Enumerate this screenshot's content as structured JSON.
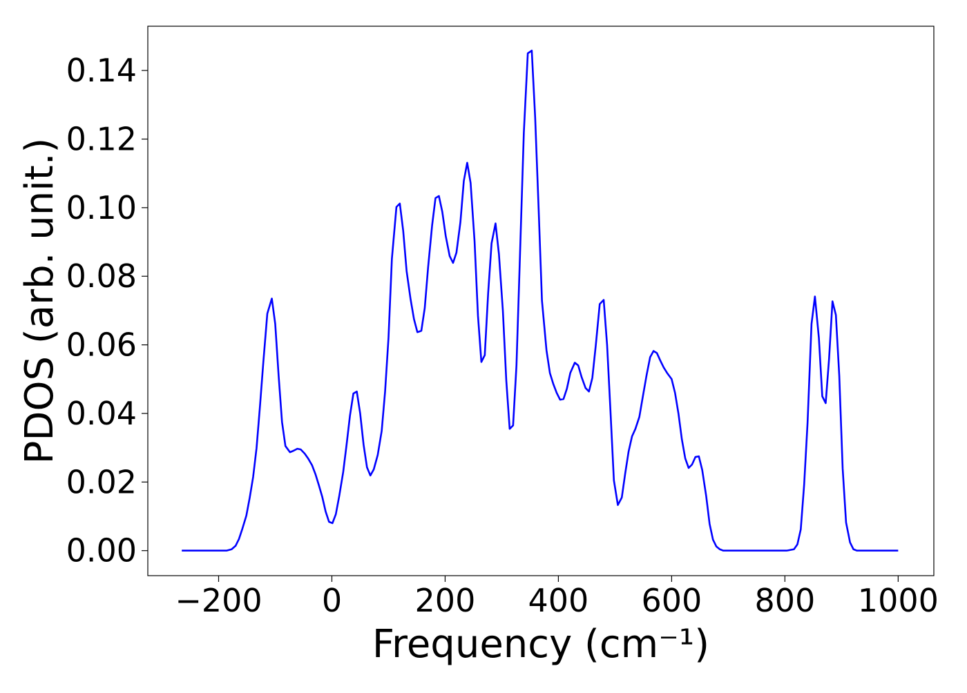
{
  "chart_data": {
    "type": "line",
    "xlabel": "Frequency (cm⁻¹)",
    "ylabel": "PDOS (arb. unit.)",
    "xlim": [
      -325,
      1063
    ],
    "ylim": [
      -0.0073,
      0.1529
    ],
    "xticks": [
      {
        "value": -200,
        "label": "−200"
      },
      0,
      200,
      400,
      600,
      800,
      1000
    ],
    "yticks": [
      {
        "value": 0,
        "label": "0.00"
      },
      {
        "value": 0.02,
        "label": "0.02"
      },
      {
        "value": 0.04,
        "label": "0.04"
      },
      {
        "value": 0.06,
        "label": "0.06"
      },
      {
        "value": 0.08,
        "label": "0.08"
      },
      {
        "value": 0.1,
        "label": "0.10"
      },
      {
        "value": 0.12,
        "label": "0.12"
      },
      {
        "value": 0.14,
        "label": "0.14"
      }
    ],
    "grid": false,
    "series": [
      {
        "color": "#0000ff",
        "x": [
          -265,
          -186,
          -177,
          -170,
          -164,
          -158,
          -151,
          -145,
          -139,
          -133,
          -127,
          -121,
          -114,
          -106,
          -100,
          -94,
          -88,
          -82,
          -74,
          -68,
          -61,
          -55,
          -48,
          -42,
          -35,
          -29,
          -23,
          -17,
          -11,
          -5,
          1,
          7,
          13,
          20,
          26,
          32,
          38,
          44,
          50,
          56,
          62,
          68,
          74,
          81,
          88,
          94,
          100,
          106,
          114,
          120,
          126,
          132,
          139,
          145,
          151,
          158,
          164,
          170,
          177,
          183,
          189,
          195,
          201,
          208,
          214,
          220,
          227,
          233,
          239,
          245,
          252,
          258,
          264,
          270,
          276,
          282,
          289,
          295,
          302,
          308,
          314,
          320,
          326,
          332,
          339,
          346,
          353,
          359,
          365,
          371,
          379,
          385,
          391,
          397,
          403,
          409,
          415,
          421,
          429,
          435,
          441,
          448,
          454,
          460,
          466,
          473,
          480,
          486,
          492,
          498,
          505,
          512,
          518,
          524,
          530,
          536,
          543,
          549,
          556,
          562,
          568,
          574,
          580,
          586,
          592,
          600,
          606,
          612,
          618,
          624,
          630,
          636,
          642,
          648,
          654,
          661,
          667,
          673,
          679,
          685,
          691,
          803,
          816,
          822,
          828,
          834,
          840,
          847,
          853,
          860,
          866,
          872,
          878,
          884,
          890,
          896,
          902,
          908,
          915,
          921,
          927,
          1000
        ],
        "values": [
          0,
          0,
          0.0004,
          0.0014,
          0.0034,
          0.0064,
          0.0102,
          0.0155,
          0.0215,
          0.0299,
          0.042,
          0.055,
          0.0691,
          0.0735,
          0.0661,
          0.051,
          0.0375,
          0.0305,
          0.0287,
          0.0291,
          0.0297,
          0.0295,
          0.0283,
          0.0269,
          0.0249,
          0.0223,
          0.0191,
          0.0157,
          0.0114,
          0.0084,
          0.008,
          0.0106,
          0.0159,
          0.0229,
          0.0309,
          0.0394,
          0.0458,
          0.0464,
          0.04,
          0.0309,
          0.0243,
          0.0219,
          0.0237,
          0.0279,
          0.0349,
          0.0464,
          0.062,
          0.0851,
          0.1002,
          0.1012,
          0.0932,
          0.0815,
          0.0733,
          0.0675,
          0.0637,
          0.0641,
          0.0707,
          0.0827,
          0.0948,
          0.1028,
          0.1034,
          0.0988,
          0.0918,
          0.0859,
          0.0839,
          0.0869,
          0.0958,
          0.1078,
          0.1131,
          0.1072,
          0.0902,
          0.0685,
          0.055,
          0.057,
          0.0751,
          0.0896,
          0.0954,
          0.0865,
          0.0699,
          0.0496,
          0.0355,
          0.0365,
          0.054,
          0.0851,
          0.1219,
          0.145,
          0.1458,
          0.1263,
          0.1002,
          0.0729,
          0.0584,
          0.0518,
          0.0486,
          0.046,
          0.044,
          0.0442,
          0.0472,
          0.0518,
          0.0548,
          0.054,
          0.0506,
          0.0474,
          0.0464,
          0.0504,
          0.0598,
          0.0719,
          0.0731,
          0.06,
          0.0406,
          0.0205,
          0.0133,
          0.0155,
          0.0225,
          0.0289,
          0.0333,
          0.0355,
          0.039,
          0.0448,
          0.0514,
          0.0564,
          0.0582,
          0.0576,
          0.0554,
          0.0534,
          0.0518,
          0.05,
          0.046,
          0.04,
          0.0325,
          0.0269,
          0.0241,
          0.0251,
          0.0273,
          0.0275,
          0.0235,
          0.0159,
          0.0078,
          0.0032,
          0.0012,
          0.0004,
          0,
          0,
          0.0004,
          0.0018,
          0.0062,
          0.0193,
          0.0373,
          0.0661,
          0.0741,
          0.062,
          0.045,
          0.043,
          0.056,
          0.0727,
          0.0687,
          0.051,
          0.0239,
          0.0082,
          0.0024,
          0.0004,
          0,
          0
        ]
      }
    ]
  }
}
